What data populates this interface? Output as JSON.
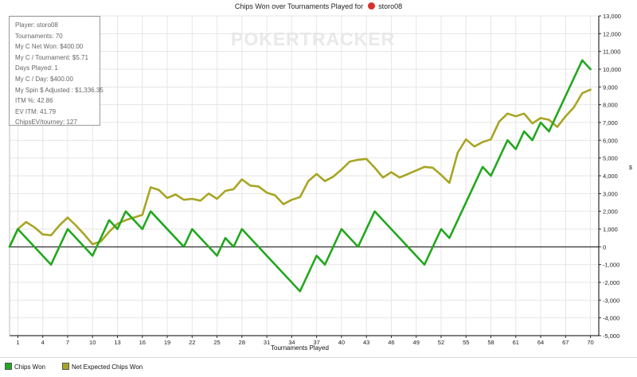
{
  "title": {
    "prefix": "Chips Won over Tournaments Played for",
    "player": "storo08"
  },
  "watermark": "POKERTRACKER",
  "info_box": [
    "Player: storo08",
    "Tournaments: 70",
    "My C Net Won: $400.00",
    "My C / Tournament: $5.71",
    "Days Played: 1",
    "My C / Day: $400.00",
    "My Spin $ Adjusted : $1,336.35",
    "ITM %: 42.86",
    "EV ITM: 41.79",
    "ChipsEV/tourney: 127"
  ],
  "colors": {
    "chips_won": "#22a81e",
    "net_expected": "#a8a524",
    "zero_line": "#000000",
    "grid": "#e6e6e6",
    "axis": "#000000"
  },
  "chart_data": {
    "type": "line",
    "title": "Chips Won over Tournaments Played for storo08",
    "xlabel": "Tournaments Played",
    "ylabel": "$",
    "xlim": [
      0,
      71
    ],
    "ylim": [
      -5000,
      13000
    ],
    "x_ticks": [
      1,
      4,
      7,
      10,
      13,
      16,
      19,
      22,
      25,
      28,
      31,
      34,
      37,
      40,
      43,
      46,
      49,
      52,
      55,
      58,
      61,
      64,
      67,
      70
    ],
    "y_ticks": [
      -5000,
      -4000,
      -3000,
      -2000,
      -1000,
      0,
      1000,
      2000,
      3000,
      4000,
      5000,
      6000,
      7000,
      8000,
      9000,
      10000,
      11000,
      12000,
      13000
    ],
    "y_tick_labels": [
      "-5,000",
      "-4,000",
      "-3,000",
      "-2,000",
      "-1,000",
      "0",
      "1,000",
      "2,000",
      "3,000",
      "4,000",
      "5,000",
      "6,000",
      "7,000",
      "8,000",
      "9,000",
      "10,000",
      "11,000",
      "12,000",
      "13,000"
    ],
    "grid": true,
    "legend_position": "bottom-left",
    "series": [
      {
        "name": "Chips Won",
        "color": "#22a81e",
        "x": [
          0,
          1,
          5,
          7,
          10,
          12,
          13,
          14,
          16,
          17,
          21,
          22,
          25,
          26,
          27,
          28,
          35,
          37,
          38,
          40,
          42,
          44,
          50,
          52,
          53,
          57,
          58,
          60,
          61,
          62,
          63,
          64,
          65,
          69,
          70
        ],
        "y": [
          0,
          1000,
          -1000,
          1000,
          -500,
          1500,
          1000,
          2000,
          1000,
          2000,
          0,
          1000,
          -500,
          500,
          0,
          1000,
          -2500,
          -500,
          -1000,
          1000,
          0,
          2000,
          -1000,
          1000,
          500,
          4500,
          4000,
          6000,
          5500,
          6500,
          6000,
          7000,
          6500,
          10500,
          10000
        ]
      },
      {
        "name": "Net Expected Chips Won",
        "color": "#a8a524",
        "x": [
          0,
          1,
          2,
          3,
          4,
          5,
          6,
          7,
          8,
          9,
          10,
          11,
          12,
          13,
          14,
          15,
          16,
          17,
          18,
          19,
          20,
          21,
          22,
          23,
          24,
          25,
          26,
          27,
          28,
          29,
          30,
          31,
          32,
          33,
          34,
          35,
          36,
          37,
          38,
          39,
          40,
          41,
          42,
          43,
          44,
          45,
          46,
          47,
          48,
          49,
          50,
          51,
          52,
          53,
          54,
          55,
          56,
          57,
          58,
          59,
          60,
          61,
          62,
          63,
          64,
          65,
          66,
          67,
          68,
          69,
          70
        ],
        "y": [
          0,
          1000,
          1400,
          1100,
          700,
          650,
          1200,
          1650,
          1200,
          700,
          150,
          300,
          850,
          1300,
          1500,
          1650,
          1800,
          3350,
          3200,
          2750,
          2950,
          2650,
          2700,
          2600,
          3000,
          2700,
          3150,
          3250,
          3800,
          3450,
          3400,
          3050,
          2900,
          2400,
          2650,
          2800,
          3700,
          4100,
          3700,
          3950,
          4350,
          4800,
          4900,
          4950,
          4450,
          3900,
          4200,
          3900,
          4100,
          4300,
          4500,
          4450,
          4050,
          3600,
          5300,
          6050,
          5650,
          5900,
          6050,
          7050,
          7500,
          7350,
          7500,
          6950,
          7250,
          7150,
          6750,
          7350,
          7850,
          8650,
          8850
        ]
      }
    ]
  },
  "x_axis_title": "Tournaments Played",
  "y_axis_unit": "$",
  "legend": [
    {
      "label": "Chips Won",
      "color": "#22a81e"
    },
    {
      "label": "Net Expected Chips Won",
      "color": "#a8a524"
    }
  ]
}
